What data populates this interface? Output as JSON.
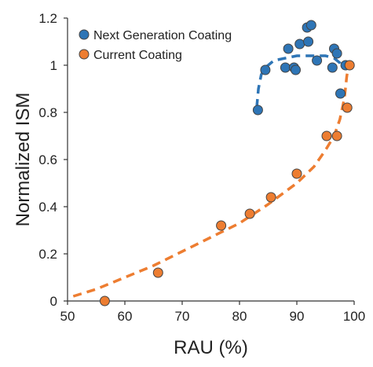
{
  "chart_data": {
    "type": "scatter",
    "xlabel": "RAU (%)",
    "ylabel": "Normalized ISM",
    "xlim": [
      50,
      100
    ],
    "ylim": [
      0,
      1.2
    ],
    "xticks": [
      50,
      60,
      70,
      80,
      90,
      100
    ],
    "yticks": [
      0,
      0.2,
      0.4,
      0.6,
      0.8,
      1,
      1.2
    ],
    "ytick_labels": [
      "0",
      "0.2",
      "0.4",
      "0.6",
      "0.8",
      "1",
      "1.2"
    ],
    "grid": false,
    "legend_position": "top-right",
    "series": [
      {
        "name": "Next Generation Coating",
        "color": "#2e75b6",
        "points": [
          [
            83.2,
            0.81
          ],
          [
            84.5,
            0.98
          ],
          [
            88.0,
            0.99
          ],
          [
            88.5,
            1.07
          ],
          [
            89.5,
            0.99
          ],
          [
            89.8,
            0.98
          ],
          [
            90.5,
            1.09
          ],
          [
            91.8,
            1.16
          ],
          [
            92.0,
            1.1
          ],
          [
            92.5,
            1.17
          ],
          [
            93.5,
            1.02
          ],
          [
            96.2,
            0.99
          ],
          [
            96.5,
            1.07
          ],
          [
            97.0,
            1.05
          ],
          [
            97.6,
            0.88
          ],
          [
            98.5,
            1.0
          ]
        ],
        "fit": [
          [
            83.0,
            0.82
          ],
          [
            83.3,
            0.9
          ],
          [
            83.8,
            0.96
          ],
          [
            84.5,
            0.99
          ],
          [
            86.0,
            1.02
          ],
          [
            88.0,
            1.03
          ],
          [
            90.0,
            1.04
          ],
          [
            93.0,
            1.04
          ],
          [
            95.0,
            1.04
          ],
          [
            96.5,
            1.03
          ],
          [
            97.5,
            1.01
          ],
          [
            98.0,
            0.99
          ]
        ]
      },
      {
        "name": "Current Coating",
        "color": "#ed7d31",
        "points": [
          [
            56.5,
            0.0
          ],
          [
            65.8,
            0.12
          ],
          [
            76.8,
            0.32
          ],
          [
            81.8,
            0.37
          ],
          [
            85.5,
            0.44
          ],
          [
            90.0,
            0.54
          ],
          [
            95.2,
            0.7
          ],
          [
            97.0,
            0.7
          ],
          [
            98.8,
            0.82
          ],
          [
            99.2,
            1.0
          ]
        ],
        "fit": [
          [
            51.0,
            0.02
          ],
          [
            55.0,
            0.05
          ],
          [
            60.0,
            0.1
          ],
          [
            65.0,
            0.15
          ],
          [
            70.0,
            0.21
          ],
          [
            75.0,
            0.27
          ],
          [
            80.0,
            0.33
          ],
          [
            85.0,
            0.41
          ],
          [
            90.0,
            0.5
          ],
          [
            93.0,
            0.57
          ],
          [
            95.0,
            0.64
          ],
          [
            96.5,
            0.7
          ],
          [
            97.5,
            0.77
          ],
          [
            98.3,
            0.86
          ],
          [
            98.7,
            0.95
          ],
          [
            99.0,
            1.0
          ]
        ]
      }
    ]
  }
}
